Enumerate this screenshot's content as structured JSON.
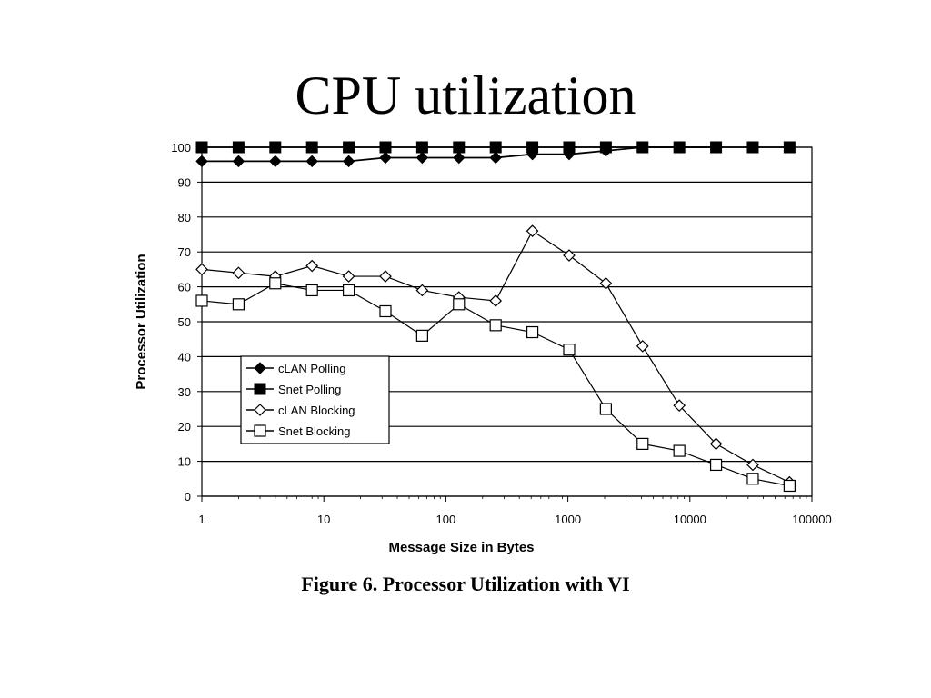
{
  "slide": {
    "title": "CPU utilization",
    "caption": "Figure 6. Processor Utilization with VI"
  },
  "chart_data": {
    "type": "line",
    "title": "",
    "xlabel": "Message Size in Bytes",
    "ylabel": "Processor Utilization",
    "x_scale": "log",
    "xlim": [
      1,
      100000
    ],
    "ylim": [
      0,
      100
    ],
    "x_ticks": [
      "1",
      "10",
      "100",
      "1000",
      "10000",
      "100000"
    ],
    "y_ticks": [
      "0",
      "10",
      "20",
      "30",
      "40",
      "50",
      "60",
      "70",
      "80",
      "90",
      "100"
    ],
    "grid": "horizontal",
    "legend_position": "bottom-left",
    "x": [
      1,
      2,
      4,
      8,
      16,
      32,
      64,
      128,
      256,
      512,
      1024,
      2048,
      4096,
      8192,
      16384,
      32768,
      65536
    ],
    "series": [
      {
        "name": "cLAN Polling",
        "marker": "filled-diamond",
        "values": [
          96,
          96,
          96,
          96,
          96,
          97,
          97,
          97,
          97,
          98,
          98,
          99,
          100,
          100,
          100,
          null,
          null
        ]
      },
      {
        "name": "Snet Polling",
        "marker": "filled-square",
        "values": [
          100,
          100,
          100,
          100,
          100,
          100,
          100,
          100,
          100,
          100,
          100,
          100,
          100,
          100,
          100,
          100,
          100
        ]
      },
      {
        "name": "cLAN Blocking",
        "marker": "open-diamond",
        "values": [
          65,
          64,
          63,
          66,
          63,
          63,
          59,
          57,
          56,
          76,
          69,
          61,
          43,
          26,
          15,
          9,
          4
        ]
      },
      {
        "name": "Snet Blocking",
        "marker": "open-square",
        "values": [
          56,
          55,
          61,
          59,
          59,
          53,
          46,
          55,
          49,
          47,
          42,
          25,
          15,
          13,
          9,
          5,
          3
        ]
      }
    ]
  }
}
